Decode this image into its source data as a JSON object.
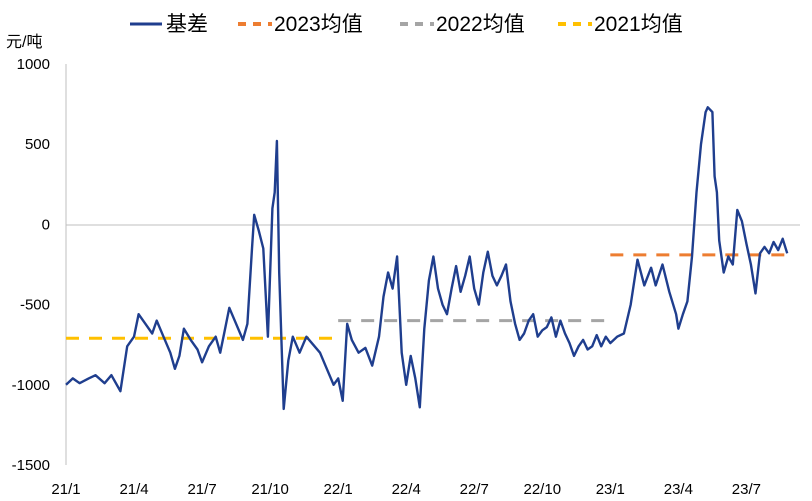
{
  "chart_data": {
    "type": "line",
    "title": "",
    "xlabel": "",
    "ylabel": "元/吨",
    "ylim": [
      -1500,
      1000
    ],
    "yticks": [
      1000,
      500,
      0,
      -500,
      -1000,
      -1500
    ],
    "xticks": [
      "21/1",
      "21/4",
      "21/7",
      "21/10",
      "22/1",
      "22/4",
      "22/7",
      "22/10",
      "23/1",
      "23/4",
      "23/7"
    ],
    "grid": false,
    "legend_position": "top",
    "series": [
      {
        "name": "基差",
        "style": "solid",
        "color": "#1F3E8E",
        "points": [
          [
            "21/1",
            -1000
          ],
          [
            "21/1.3",
            -960
          ],
          [
            "21/1.6",
            -990
          ],
          [
            "21/2",
            -960
          ],
          [
            "21/2.3",
            -940
          ],
          [
            "21/2.7",
            -990
          ],
          [
            "21/3",
            -940
          ],
          [
            "21/3.4",
            -1040
          ],
          [
            "21/3.7",
            -760
          ],
          [
            "21/4",
            -700
          ],
          [
            "21/4.2",
            -560
          ],
          [
            "21/4.5",
            -620
          ],
          [
            "21/4.8",
            -680
          ],
          [
            "21/5",
            -600
          ],
          [
            "21/5.3",
            -700
          ],
          [
            "21/5.6",
            -800
          ],
          [
            "21/5.8",
            -900
          ],
          [
            "21/6",
            -820
          ],
          [
            "21/6.2",
            -650
          ],
          [
            "21/6.5",
            -720
          ],
          [
            "21/6.8",
            -780
          ],
          [
            "21/7",
            -860
          ],
          [
            "21/7.3",
            -760
          ],
          [
            "21/7.6",
            -700
          ],
          [
            "21/7.8",
            -800
          ],
          [
            "21/8",
            -660
          ],
          [
            "21/8.2",
            -520
          ],
          [
            "21/8.5",
            -620
          ],
          [
            "21/8.8",
            -720
          ],
          [
            "21/9",
            -620
          ],
          [
            "21/9.2",
            -150
          ],
          [
            "21/9.3",
            60
          ],
          [
            "21/9.5",
            -40
          ],
          [
            "21/9.7",
            -150
          ],
          [
            "21/9.9",
            -700
          ],
          [
            "21/10.1",
            100
          ],
          [
            "21/10.2",
            200
          ],
          [
            "21/10.3",
            520
          ],
          [
            "21/10.4",
            -300
          ],
          [
            "21/10.6",
            -1150
          ],
          [
            "21/10.8",
            -850
          ],
          [
            "21/11",
            -700
          ],
          [
            "21/11.3",
            -800
          ],
          [
            "21/11.6",
            -700
          ],
          [
            "21/11.9",
            -750
          ],
          [
            "21/12.2",
            -800
          ],
          [
            "21/12.5",
            -900
          ],
          [
            "21/12.8",
            -1000
          ],
          [
            "22/1",
            -960
          ],
          [
            "22/1.2",
            -1100
          ],
          [
            "22/1.4",
            -620
          ],
          [
            "22/1.6",
            -720
          ],
          [
            "22/1.9",
            -800
          ],
          [
            "22/2.2",
            -770
          ],
          [
            "22/2.5",
            -880
          ],
          [
            "22/2.8",
            -700
          ],
          [
            "22/3",
            -450
          ],
          [
            "22/3.2",
            -300
          ],
          [
            "22/3.4",
            -400
          ],
          [
            "22/3.6",
            -200
          ],
          [
            "22/3.8",
            -800
          ],
          [
            "22/4",
            -1000
          ],
          [
            "22/4.2",
            -820
          ],
          [
            "22/4.4",
            -960
          ],
          [
            "22/4.6",
            -1140
          ],
          [
            "22/4.8",
            -650
          ],
          [
            "22/5",
            -350
          ],
          [
            "22/5.2",
            -200
          ],
          [
            "22/5.4",
            -400
          ],
          [
            "22/5.6",
            -500
          ],
          [
            "22/5.8",
            -560
          ],
          [
            "22/6",
            -400
          ],
          [
            "22/6.2",
            -260
          ],
          [
            "22/6.4",
            -420
          ],
          [
            "22/6.6",
            -320
          ],
          [
            "22/6.8",
            -200
          ],
          [
            "22/7",
            -400
          ],
          [
            "22/7.2",
            -500
          ],
          [
            "22/7.4",
            -300
          ],
          [
            "22/7.6",
            -170
          ],
          [
            "22/7.8",
            -320
          ],
          [
            "22/8",
            -380
          ],
          [
            "22/8.2",
            -320
          ],
          [
            "22/8.4",
            -250
          ],
          [
            "22/8.6",
            -480
          ],
          [
            "22/8.8",
            -620
          ],
          [
            "22/9",
            -720
          ],
          [
            "22/9.2",
            -680
          ],
          [
            "22/9.4",
            -600
          ],
          [
            "22/9.6",
            -560
          ],
          [
            "22/9.8",
            -700
          ],
          [
            "22/10",
            -660
          ],
          [
            "22/10.2",
            -640
          ],
          [
            "22/10.4",
            -580
          ],
          [
            "22/10.6",
            -700
          ],
          [
            "22/10.8",
            -600
          ],
          [
            "22/11",
            -680
          ],
          [
            "22/11.2",
            -740
          ],
          [
            "22/11.4",
            -820
          ],
          [
            "22/11.6",
            -760
          ],
          [
            "22/11.8",
            -720
          ],
          [
            "22/12",
            -780
          ],
          [
            "22/12.2",
            -760
          ],
          [
            "22/12.4",
            -690
          ],
          [
            "22/12.6",
            -760
          ],
          [
            "22/12.8",
            -700
          ],
          [
            "23/1",
            -740
          ],
          [
            "23/1.3",
            -700
          ],
          [
            "23/1.6",
            -680
          ],
          [
            "23/1.9",
            -500
          ],
          [
            "23/2.2",
            -220
          ],
          [
            "23/2.5",
            -380
          ],
          [
            "23/2.8",
            -270
          ],
          [
            "23/3",
            -380
          ],
          [
            "23/3.3",
            -250
          ],
          [
            "23/3.6",
            -420
          ],
          [
            "23/3.9",
            -560
          ],
          [
            "23/4",
            -650
          ],
          [
            "23/4.2",
            -560
          ],
          [
            "23/4.4",
            -480
          ],
          [
            "23/4.6",
            -200
          ],
          [
            "23/4.8",
            200
          ],
          [
            "23/5",
            500
          ],
          [
            "23/5.2",
            700
          ],
          [
            "23/5.3",
            730
          ],
          [
            "23/5.5",
            700
          ],
          [
            "23/5.6",
            300
          ],
          [
            "23/5.7",
            200
          ],
          [
            "23/5.8",
            -100
          ],
          [
            "23/6",
            -300
          ],
          [
            "23/6.2",
            -200
          ],
          [
            "23/6.4",
            -250
          ],
          [
            "23/6.6",
            90
          ],
          [
            "23/6.8",
            20
          ],
          [
            "23/7",
            -120
          ],
          [
            "23/7.2",
            -250
          ],
          [
            "23/7.4",
            -430
          ],
          [
            "23/7.6",
            -180
          ],
          [
            "23/7.8",
            -140
          ],
          [
            "23/8",
            -180
          ],
          [
            "23/8.2",
            -110
          ],
          [
            "23/8.4",
            -160
          ],
          [
            "23/8.6",
            -90
          ],
          [
            "23/8.8",
            -180
          ]
        ]
      },
      {
        "name": "2023均值",
        "style": "dashed",
        "color": "#ED7D31",
        "value": -190,
        "x_range": [
          "23/1",
          "23/8.9"
        ]
      },
      {
        "name": "2022均值",
        "style": "dashed",
        "color": "#A5A5A5",
        "value": -600,
        "x_range": [
          "22/1",
          "22/12.8"
        ]
      },
      {
        "name": "2021均值",
        "style": "dashed",
        "color": "#FFC000",
        "value": -710,
        "x_range": [
          "21/1",
          "21/12.8"
        ]
      }
    ]
  }
}
